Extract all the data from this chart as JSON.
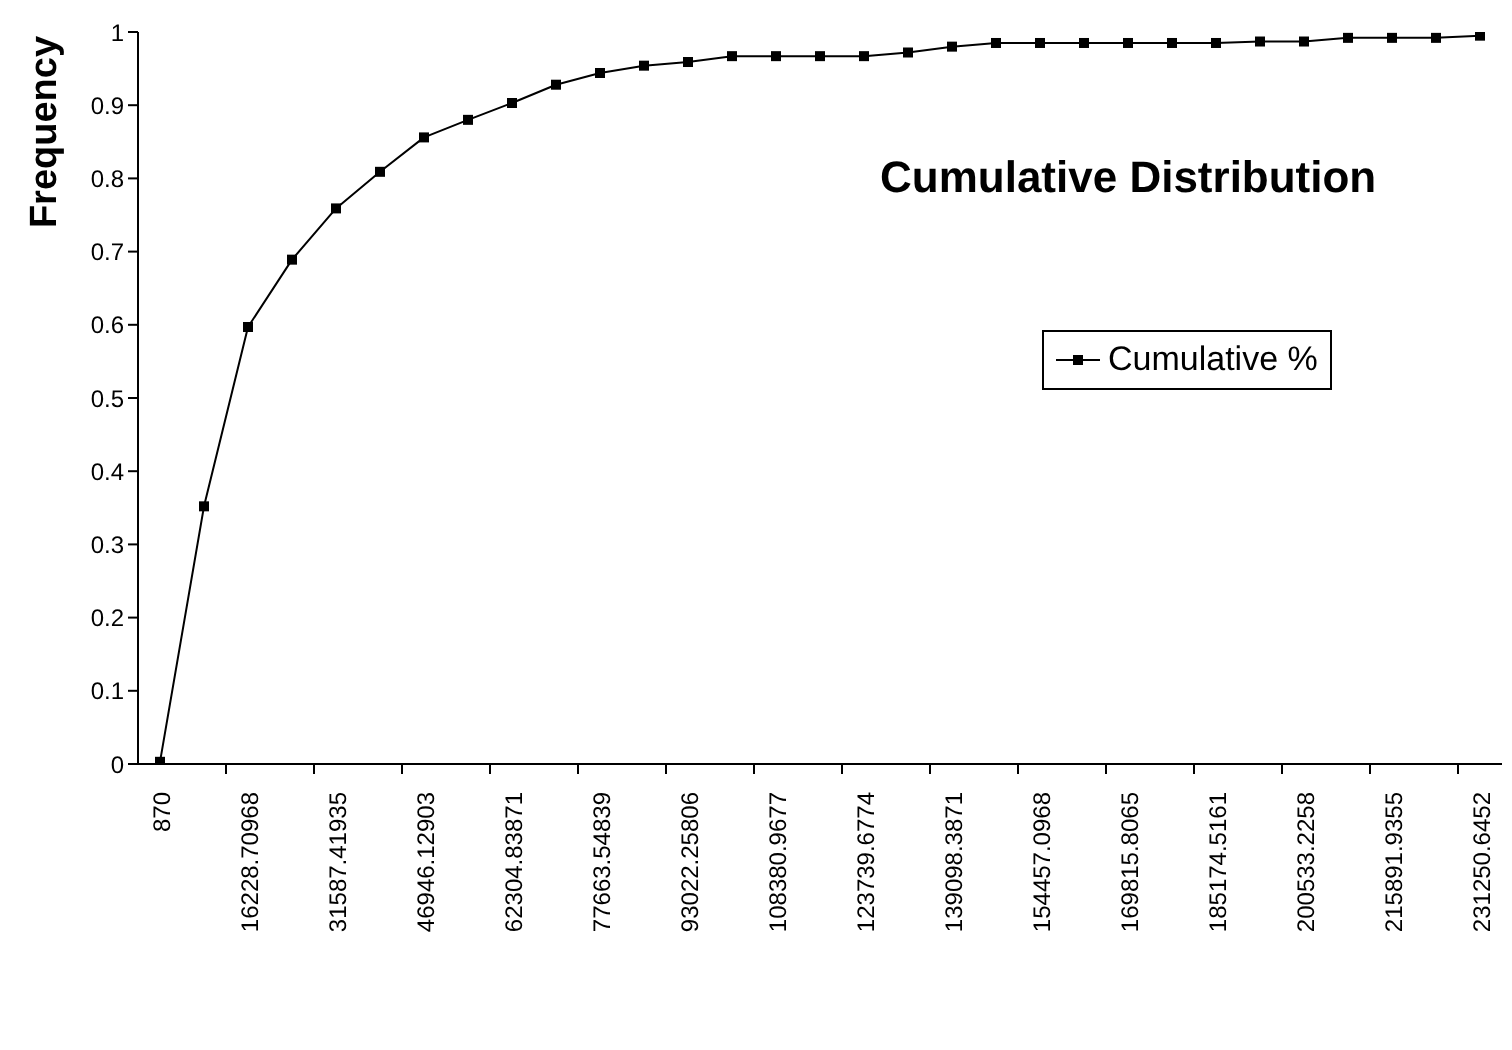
{
  "chart_data": {
    "type": "line",
    "title": "Cumulative Distribution",
    "ylabel": "Frequency",
    "categories": [
      "870",
      null,
      "16228.70968",
      null,
      "31587.41935",
      null,
      "46946.12903",
      null,
      "62304.83871",
      null,
      "77663.54839",
      null,
      "93022.25806",
      null,
      "108380.9677",
      null,
      "123739.6774",
      null,
      "139098.3871",
      null,
      "154457.0968",
      null,
      "169815.8065",
      null,
      "185174.5161",
      null,
      "200533.2258",
      null,
      "215891.9355",
      null,
      "231250.6452"
    ],
    "series": [
      {
        "name": "Cumulative %",
        "color": "#000000",
        "values": [
          0.003,
          0.352,
          0.597,
          0.689,
          0.759,
          0.809,
          0.856,
          0.88,
          0.903,
          0.928,
          0.944,
          0.954,
          0.959,
          0.967,
          0.967,
          0.967,
          0.967,
          0.972,
          0.98,
          0.985,
          0.985,
          0.985,
          0.985,
          0.985,
          0.985,
          0.987,
          0.987,
          0.992,
          0.992,
          0.992,
          0.995
        ]
      }
    ],
    "ylim": [
      0,
      1
    ],
    "yticks": [
      0,
      0.1,
      0.2,
      0.3,
      0.4,
      0.5,
      0.6,
      0.7,
      0.8,
      0.9,
      1
    ],
    "grid": false,
    "legend": "right",
    "marker": "square",
    "line_style": "solid"
  }
}
